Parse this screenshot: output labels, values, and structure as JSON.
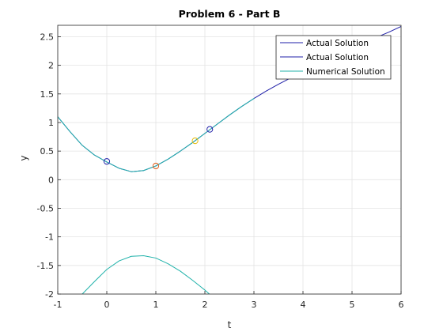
{
  "chart_data": {
    "type": "line",
    "title": "Problem 6 - Part B",
    "xlabel": "t",
    "ylabel": "y",
    "xlim": [
      -1,
      6
    ],
    "ylim": [
      -2,
      2.7
    ],
    "xticks": [
      -1,
      0,
      1,
      2,
      3,
      4,
      5,
      6
    ],
    "xtick_labels": [
      "-1",
      "0",
      "1",
      "2",
      "3",
      "4",
      "5",
      "6"
    ],
    "yticks": [
      -2,
      -1.5,
      -1,
      -0.5,
      0,
      0.5,
      1,
      1.5,
      2,
      2.5
    ],
    "ytick_labels": [
      "-2",
      "-1.5",
      "-1",
      "-0.5",
      "0",
      "0.5",
      "1",
      "1.5",
      "2",
      "2.5"
    ],
    "grid": true,
    "legend_position": "top-right",
    "series": [
      {
        "name": "Actual Solution",
        "color": "#1f1fa8",
        "x": [
          -1,
          -0.75,
          -0.5,
          -0.25,
          0,
          0.25,
          0.5,
          0.75,
          1,
          1.25,
          1.5,
          1.75,
          2,
          2.25,
          2.5,
          2.75,
          3,
          3.25,
          3.5,
          3.75,
          4,
          4.25,
          4.5,
          4.75,
          5,
          5.25,
          5.5,
          5.75,
          6
        ],
        "y": [
          1.1,
          0.84,
          0.6,
          0.43,
          0.31,
          0.2,
          0.14,
          0.16,
          0.24,
          0.36,
          0.5,
          0.65,
          0.81,
          0.97,
          1.13,
          1.28,
          1.42,
          1.55,
          1.67,
          1.78,
          1.9,
          2.0,
          2.1,
          2.2,
          2.3,
          2.4,
          2.49,
          2.58,
          2.68
        ]
      },
      {
        "name": "Actual Solution",
        "color": "#1f1fa8",
        "x": [],
        "y": []
      },
      {
        "name": "Numerical Solution",
        "color": "#20b2aa",
        "x": [
          -1,
          -0.75,
          -0.5,
          -0.25,
          0,
          0.25,
          0.5,
          0.75,
          1,
          1.25,
          1.5,
          1.75,
          2,
          2.25,
          2.5,
          2.75,
          3
        ],
        "y": [
          1.1,
          0.84,
          0.6,
          0.43,
          0.31,
          0.2,
          0.14,
          0.16,
          0.24,
          0.36,
          0.5,
          0.65,
          0.81,
          0.97,
          1.13,
          1.28,
          1.42
        ]
      },
      {
        "color": "#20b2aa",
        "x": [
          -0.5,
          -0.25,
          0,
          0.25,
          0.5,
          0.75,
          1,
          1.25,
          1.5,
          1.75,
          2,
          2.25,
          2.5
        ],
        "y": [
          -2.0,
          -1.78,
          -1.57,
          -1.42,
          -1.34,
          -1.33,
          -1.37,
          -1.47,
          -1.6,
          -1.76,
          -1.93,
          -2.12,
          -2.3
        ]
      }
    ],
    "markers": [
      {
        "x": 0,
        "y": 0.32,
        "color": "#1f1fa8"
      },
      {
        "x": 1,
        "y": 0.24,
        "color": "#e0601c"
      },
      {
        "x": 1.8,
        "y": 0.68,
        "color": "#e6b800"
      },
      {
        "x": 2.1,
        "y": 0.88,
        "color": "#1f1fa8"
      }
    ]
  }
}
